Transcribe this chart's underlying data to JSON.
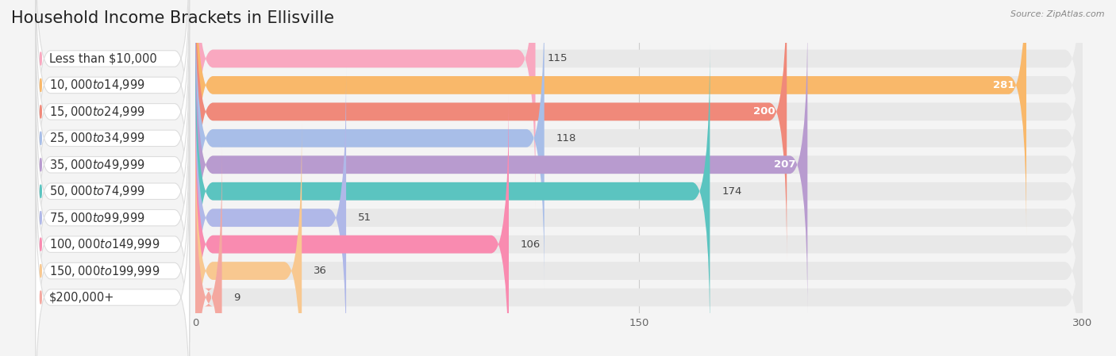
{
  "title": "Household Income Brackets in Ellisville",
  "source": "Source: ZipAtlas.com",
  "categories": [
    "Less than $10,000",
    "$10,000 to $14,999",
    "$15,000 to $24,999",
    "$25,000 to $34,999",
    "$35,000 to $49,999",
    "$50,000 to $74,999",
    "$75,000 to $99,999",
    "$100,000 to $149,999",
    "$150,000 to $199,999",
    "$200,000+"
  ],
  "values": [
    115,
    281,
    200,
    118,
    207,
    174,
    51,
    106,
    36,
    9
  ],
  "bar_colors": [
    "#F9A8C0",
    "#F9B86A",
    "#F0897A",
    "#A8BEE8",
    "#B89BCF",
    "#5BC4C0",
    "#B0B8E8",
    "#F98BB0",
    "#F8C890",
    "#F4A8A0"
  ],
  "background_color": "#f4f4f4",
  "bar_bg_color": "#e8e8e8",
  "xlim": [
    0,
    300
  ],
  "xticks": [
    0,
    150,
    300
  ],
  "title_fontsize": 15,
  "label_fontsize": 10.5,
  "value_fontsize": 9.5,
  "source_fontsize": 8
}
